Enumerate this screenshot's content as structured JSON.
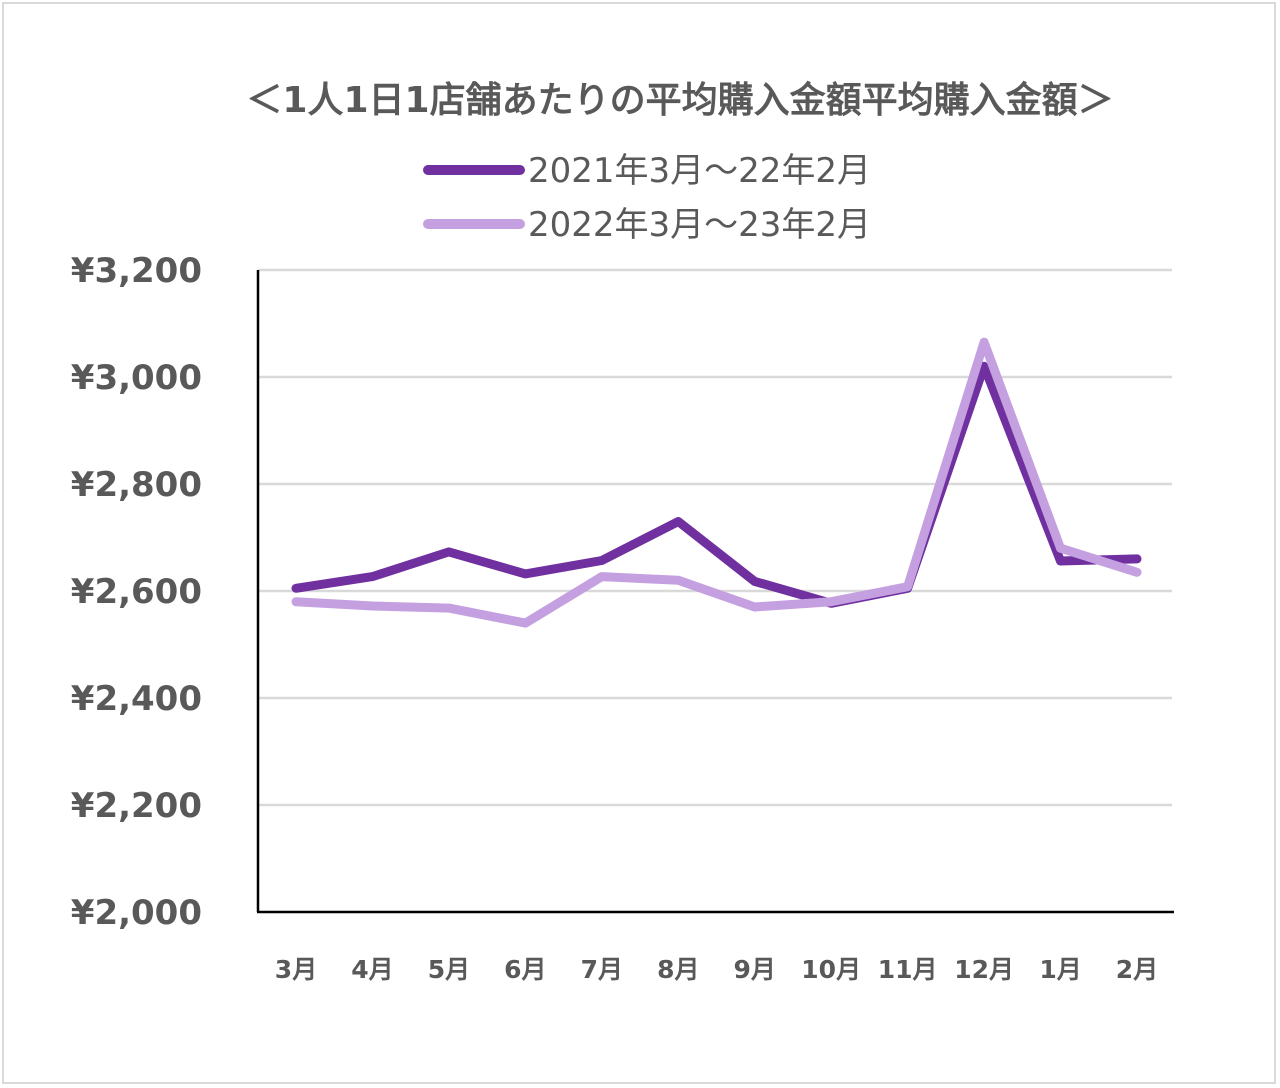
{
  "chart_data": {
    "type": "line",
    "title": "＜1人1日1店舗あたりの平均購入金額平均購入金額＞",
    "categories": [
      "3月",
      "4月",
      "5月",
      "6月",
      "7月",
      "8月",
      "9月",
      "10月",
      "11月",
      "12月",
      "1月",
      "2月"
    ],
    "y_tick_labels": [
      "¥3,200",
      "¥3,000",
      "¥2,800",
      "¥2,600",
      "¥2,400",
      "¥2,200",
      "¥2,000"
    ],
    "ylim": [
      2000,
      3200
    ],
    "grid": true,
    "legend_position": "top",
    "series": [
      {
        "name": "2021年3月～22年2月",
        "color": "#7030a0",
        "values": [
          2605,
          2627,
          2673,
          2632,
          2657,
          2730,
          2618,
          2577,
          2605,
          3020,
          2656,
          2660
        ]
      },
      {
        "name": "2022年3月～23年2月",
        "color": "#c5a0e0",
        "values": [
          2580,
          2572,
          2568,
          2540,
          2627,
          2620,
          2570,
          2580,
          2608,
          3065,
          2680,
          2635
        ]
      }
    ]
  }
}
